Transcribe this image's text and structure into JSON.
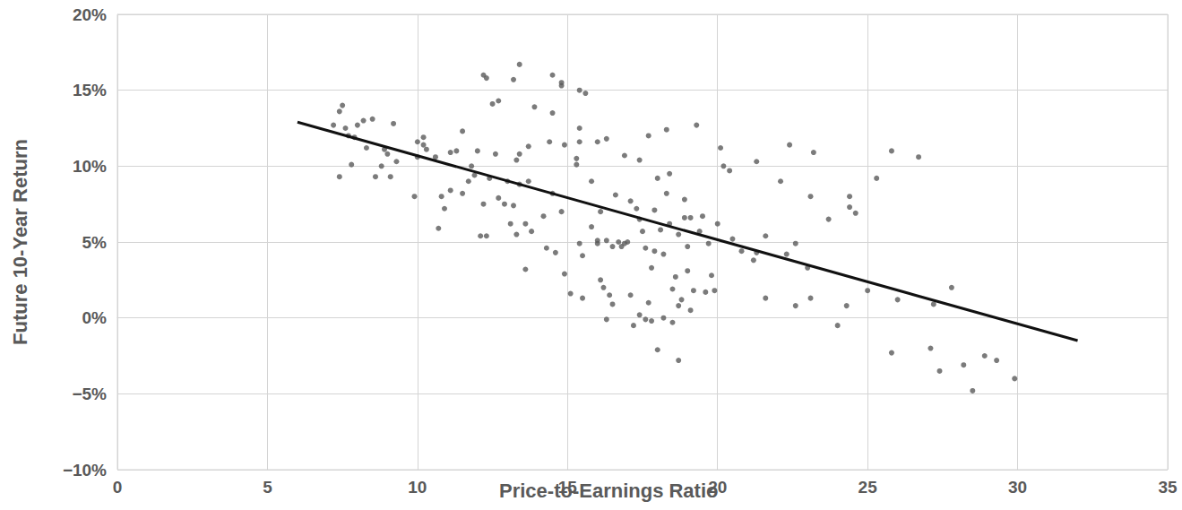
{
  "chart_data": {
    "type": "scatter",
    "x_label": "Price-to-Earnings Ratio",
    "y_label": "Future 10-Year Return",
    "xlim": [
      0,
      35
    ],
    "xticks": [
      0,
      5,
      10,
      15,
      20,
      25,
      30,
      35
    ],
    "ylim": [
      -10,
      20
    ],
    "yticks": [
      {
        "value": -10,
        "label": "−10%"
      },
      {
        "value": -5,
        "label": "−5%"
      },
      {
        "value": 0,
        "label": "0%"
      },
      {
        "value": 5,
        "label": "5%"
      },
      {
        "value": 10,
        "label": "10%"
      },
      {
        "value": 15,
        "label": "15%"
      },
      {
        "value": 20,
        "label": "20%"
      }
    ],
    "grid": true,
    "series": [
      {
        "type": "scatter",
        "marker": "circle",
        "color": "#5a5a5a",
        "x": [
          7.2,
          7.4,
          7.5,
          7.4,
          7.6,
          7.7,
          7.9,
          7.8,
          8.0,
          8.2,
          8.3,
          8.5,
          8.6,
          8.8,
          8.9,
          9.0,
          9.1,
          9.2,
          9.3,
          9.9,
          10.0,
          10.0,
          10.2,
          10.3,
          10.2,
          10.6,
          10.7,
          10.8,
          10.9,
          11.1,
          11.1,
          11.3,
          11.5,
          11.5,
          11.7,
          11.8,
          11.9,
          12.0,
          12.1,
          12.2,
          12.2,
          12.3,
          12.3,
          12.4,
          12.5,
          12.6,
          12.7,
          12.7,
          12.9,
          13.0,
          13.1,
          13.2,
          13.2,
          13.3,
          13.3,
          13.4,
          13.4,
          13.4,
          13.6,
          13.6,
          13.7,
          13.7,
          13.8,
          13.9,
          14.2,
          14.3,
          14.4,
          14.5,
          14.5,
          14.5,
          14.6,
          14.8,
          14.8,
          14.8,
          14.9,
          14.9,
          15.1,
          15.3,
          15.3,
          15.4,
          15.4,
          15.4,
          15.4,
          15.5,
          15.5,
          15.6,
          15.8,
          15.8,
          16.0,
          16.0,
          16.0,
          16.1,
          16.1,
          16.2,
          16.3,
          16.3,
          16.3,
          16.4,
          16.5,
          16.5,
          16.6,
          16.7,
          16.8,
          16.9,
          16.9,
          17.0,
          17.1,
          17.1,
          17.2,
          17.3,
          17.4,
          17.4,
          17.4,
          17.5,
          17.6,
          17.6,
          17.7,
          17.7,
          17.8,
          17.8,
          17.9,
          17.9,
          18.0,
          18.0,
          18.1,
          18.2,
          18.2,
          18.3,
          18.3,
          18.4,
          18.4,
          18.5,
          18.5,
          18.6,
          18.7,
          18.7,
          18.7,
          18.8,
          18.9,
          18.9,
          19.0,
          19.0,
          19.1,
          19.1,
          19.2,
          19.3,
          19.4,
          19.5,
          19.6,
          19.7,
          19.8,
          19.9,
          20.0,
          20.1,
          20.2,
          20.4,
          20.5,
          20.8,
          21.2,
          21.3,
          21.3,
          21.6,
          21.6,
          22.1,
          22.3,
          22.4,
          22.6,
          22.6,
          23.0,
          23.1,
          23.1,
          23.2,
          23.7,
          24.0,
          24.3,
          24.4,
          24.4,
          24.6,
          25.0,
          25.3,
          25.8,
          25.8,
          26.0,
          26.7,
          27.1,
          27.2,
          27.4,
          27.8,
          28.2,
          28.5,
          28.9,
          29.3,
          29.9
        ],
        "values": [
          12.7,
          13.6,
          14.0,
          9.3,
          12.5,
          12.0,
          11.9,
          10.1,
          12.7,
          13.0,
          11.2,
          13.1,
          9.3,
          10.0,
          11.1,
          10.8,
          9.3,
          12.8,
          10.3,
          8.0,
          11.6,
          10.6,
          11.9,
          11.1,
          11.4,
          10.6,
          5.9,
          8.0,
          7.2,
          8.4,
          10.9,
          11.0,
          12.3,
          8.2,
          9.0,
          10.0,
          9.4,
          11.0,
          5.4,
          7.5,
          16.0,
          15.8,
          5.4,
          9.2,
          14.1,
          10.8,
          7.9,
          14.3,
          7.5,
          9.0,
          6.2,
          7.4,
          15.7,
          10.4,
          5.5,
          10.8,
          8.8,
          16.7,
          6.2,
          3.2,
          11.3,
          9.0,
          5.7,
          13.9,
          6.7,
          4.6,
          11.6,
          13.5,
          16.0,
          8.2,
          4.3,
          7.0,
          15.5,
          15.3,
          11.4,
          2.9,
          1.6,
          10.5,
          10.1,
          15.0,
          12.5,
          11.6,
          4.9,
          4.1,
          1.3,
          14.8,
          9.0,
          6.0,
          11.6,
          5.1,
          4.9,
          7.0,
          2.5,
          2.0,
          -0.1,
          5.1,
          11.8,
          1.5,
          4.7,
          0.9,
          8.1,
          5.0,
          4.7,
          10.7,
          4.9,
          5.0,
          7.7,
          1.5,
          -0.5,
          7.2,
          6.5,
          0.2,
          10.4,
          5.7,
          4.6,
          -0.1,
          1.0,
          12.0,
          3.3,
          -0.2,
          4.4,
          7.1,
          9.2,
          -2.1,
          5.8,
          4.2,
          0.0,
          8.2,
          12.4,
          9.5,
          6.2,
          1.9,
          -0.3,
          2.7,
          5.5,
          0.8,
          -2.8,
          1.2,
          7.8,
          6.6,
          4.7,
          3.1,
          6.6,
          0.5,
          1.8,
          12.7,
          5.7,
          6.7,
          1.7,
          4.9,
          2.8,
          1.8,
          6.2,
          11.2,
          10.0,
          9.7,
          5.2,
          4.4,
          3.8,
          10.3,
          4.3,
          1.3,
          5.4,
          9.0,
          4.2,
          11.4,
          4.9,
          0.8,
          3.3,
          1.3,
          8.0,
          10.9,
          6.5,
          -0.5,
          0.8,
          8.0,
          7.3,
          6.9,
          1.8,
          9.2,
          -2.3,
          11.0,
          1.2,
          10.6,
          -2.0,
          0.9,
          -3.5,
          2.0,
          -3.1,
          -4.8,
          -2.5,
          -2.8,
          -4.0
        ]
      },
      {
        "type": "line",
        "line_style": "solid",
        "color": "#111111",
        "x": [
          6,
          32
        ],
        "values": [
          12.9,
          -1.5
        ]
      }
    ]
  }
}
